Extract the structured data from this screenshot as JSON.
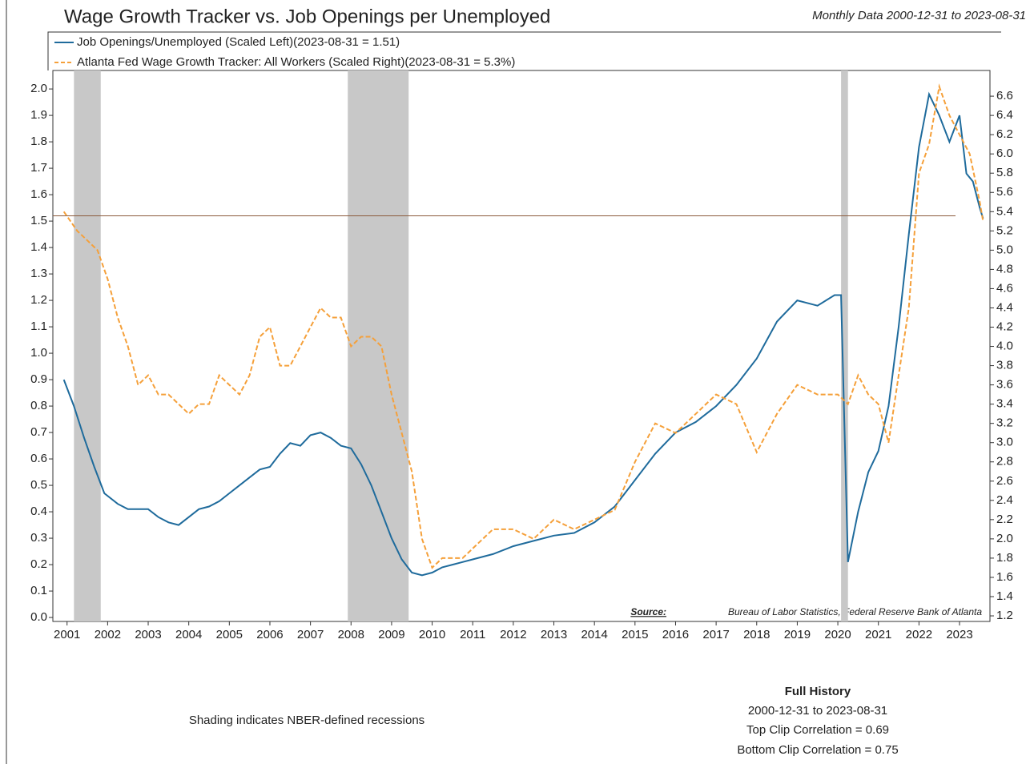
{
  "chart_data": {
    "type": "line",
    "title": "Wage Growth Tracker vs. Job Openings per Unemployed",
    "subtitle": "Monthly Data 2000-12-31 to 2023-08-31",
    "source_label": "Source:",
    "source": "Bureau of Labor Statistics, Federal Reserve Bank of Atlanta",
    "note": "Shading indicates NBER-defined recessions",
    "stats": [
      "Full History",
      "2000-12-31 to 2023-08-31",
      "Top Clip Correlation = 0.69",
      "Bottom Clip Correlation = 0.75"
    ],
    "xlim": [
      2000.65,
      2023.75
    ],
    "xticks": [
      2001,
      2002,
      2003,
      2004,
      2005,
      2006,
      2007,
      2008,
      2009,
      2010,
      2011,
      2012,
      2013,
      2014,
      2015,
      2016,
      2017,
      2018,
      2019,
      2020,
      2021,
      2022,
      2023
    ],
    "ylim": [
      -0.015,
      2.07
    ],
    "yticks": [
      {
        "value": 0,
        "label": "0.0"
      },
      0.1,
      0.2,
      0.3,
      0.4,
      0.5,
      0.6,
      0.7,
      0.8,
      0.9,
      {
        "value": 1,
        "label": "1.0"
      },
      1.1,
      1.2,
      1.3,
      1.4,
      1.5,
      1.6,
      1.7,
      1.8,
      1.9,
      {
        "value": 2,
        "label": "2.0"
      }
    ],
    "y2lim": [
      1.142,
      6.867
    ],
    "y2ticks": [
      1.2,
      1.4,
      1.6,
      1.8,
      {
        "value": 2,
        "label": "2.0"
      },
      2.2,
      2.4,
      2.6,
      2.8,
      {
        "value": 3,
        "label": "3.0"
      },
      3.2,
      3.4,
      3.6,
      3.8,
      {
        "value": 4,
        "label": "4.0"
      },
      4.2,
      4.4,
      4.6,
      4.8,
      {
        "value": 5,
        "label": "5.0"
      },
      5.2,
      5.4,
      5.6,
      5.8,
      {
        "value": 6,
        "label": "6.0"
      },
      6.2,
      6.4,
      6.6
    ],
    "recessions": [
      [
        2001.17,
        2001.83
      ],
      [
        2007.92,
        2009.42
      ],
      [
        2020.08,
        2020.25
      ]
    ],
    "reference_line": 1.52,
    "series": [
      {
        "name": "Job Openings/Unemployed (Scaled Left)(2023-08-31 = 1.51)",
        "color": "#1f6b9c",
        "dash": false,
        "x": [
          2000.92,
          2001.17,
          2001.42,
          2001.67,
          2001.92,
          2002.25,
          2002.5,
          2002.75,
          2003.0,
          2003.25,
          2003.5,
          2003.75,
          2004.0,
          2004.25,
          2004.5,
          2004.75,
          2005.0,
          2005.25,
          2005.5,
          2005.75,
          2006.0,
          2006.25,
          2006.5,
          2006.75,
          2007.0,
          2007.25,
          2007.5,
          2007.75,
          2008.0,
          2008.25,
          2008.5,
          2008.75,
          2009.0,
          2009.25,
          2009.5,
          2009.75,
          2010.0,
          2010.25,
          2010.5,
          2010.75,
          2011.0,
          2011.5,
          2012.0,
          2012.5,
          2013.0,
          2013.5,
          2014.0,
          2014.5,
          2015.0,
          2015.5,
          2016.0,
          2016.5,
          2017.0,
          2017.5,
          2018.0,
          2018.5,
          2019.0,
          2019.5,
          2019.92,
          2020.08,
          2020.25,
          2020.5,
          2020.75,
          2021.0,
          2021.25,
          2021.5,
          2021.75,
          2022.0,
          2022.25,
          2022.5,
          2022.75,
          2023.0,
          2023.17,
          2023.33,
          2023.5,
          2023.58
        ],
        "values": [
          0.9,
          0.8,
          0.68,
          0.57,
          0.47,
          0.43,
          0.41,
          0.41,
          0.41,
          0.38,
          0.36,
          0.35,
          0.38,
          0.41,
          0.42,
          0.44,
          0.47,
          0.5,
          0.53,
          0.56,
          0.57,
          0.62,
          0.66,
          0.65,
          0.69,
          0.7,
          0.68,
          0.65,
          0.64,
          0.58,
          0.5,
          0.4,
          0.3,
          0.22,
          0.17,
          0.16,
          0.17,
          0.19,
          0.2,
          0.21,
          0.22,
          0.24,
          0.27,
          0.29,
          0.31,
          0.32,
          0.36,
          0.42,
          0.52,
          0.62,
          0.7,
          0.74,
          0.8,
          0.88,
          0.98,
          1.12,
          1.2,
          1.18,
          1.22,
          1.22,
          0.21,
          0.4,
          0.55,
          0.63,
          0.8,
          1.1,
          1.45,
          1.78,
          1.98,
          1.9,
          1.8,
          1.9,
          1.68,
          1.65,
          1.55,
          1.51
        ]
      },
      {
        "name": "Atlanta Fed Wage Growth Tracker: All Workers (Scaled Right)(2023-08-31 = 5.3%)",
        "color": "#f5a03a",
        "dash": true,
        "axis": "y2",
        "x": [
          2000.92,
          2001.25,
          2001.5,
          2001.75,
          2002.0,
          2002.25,
          2002.5,
          2002.75,
          2003.0,
          2003.25,
          2003.5,
          2003.75,
          2004.0,
          2004.25,
          2004.5,
          2004.75,
          2005.0,
          2005.25,
          2005.5,
          2005.75,
          2006.0,
          2006.25,
          2006.5,
          2006.75,
          2007.0,
          2007.25,
          2007.5,
          2007.75,
          2008.0,
          2008.25,
          2008.5,
          2008.75,
          2009.0,
          2009.25,
          2009.5,
          2009.75,
          2010.0,
          2010.25,
          2010.5,
          2010.75,
          2011.0,
          2011.5,
          2012.0,
          2012.5,
          2013.0,
          2013.5,
          2014.0,
          2014.5,
          2015.0,
          2015.5,
          2016.0,
          2016.5,
          2017.0,
          2017.5,
          2018.0,
          2018.5,
          2019.0,
          2019.5,
          2020.0,
          2020.25,
          2020.5,
          2020.75,
          2021.0,
          2021.25,
          2021.5,
          2021.75,
          2022.0,
          2022.25,
          2022.5,
          2022.75,
          2023.0,
          2023.25,
          2023.5,
          2023.58
        ],
        "values": [
          5.4,
          5.2,
          5.1,
          5.0,
          4.7,
          4.3,
          4.0,
          3.6,
          3.7,
          3.5,
          3.5,
          3.4,
          3.3,
          3.4,
          3.4,
          3.7,
          3.6,
          3.5,
          3.7,
          4.1,
          4.2,
          3.8,
          3.8,
          4.0,
          4.2,
          4.4,
          4.3,
          4.3,
          4.0,
          4.1,
          4.1,
          4.0,
          3.5,
          3.1,
          2.7,
          2.0,
          1.7,
          1.8,
          1.8,
          1.8,
          1.9,
          2.1,
          2.1,
          2.0,
          2.2,
          2.1,
          2.2,
          2.3,
          2.8,
          3.2,
          3.1,
          3.3,
          3.5,
          3.4,
          2.9,
          3.3,
          3.6,
          3.5,
          3.5,
          3.4,
          3.7,
          3.5,
          3.4,
          3.0,
          3.7,
          4.4,
          5.8,
          6.1,
          6.7,
          6.4,
          6.2,
          6.0,
          5.5,
          5.3
        ]
      }
    ]
  }
}
